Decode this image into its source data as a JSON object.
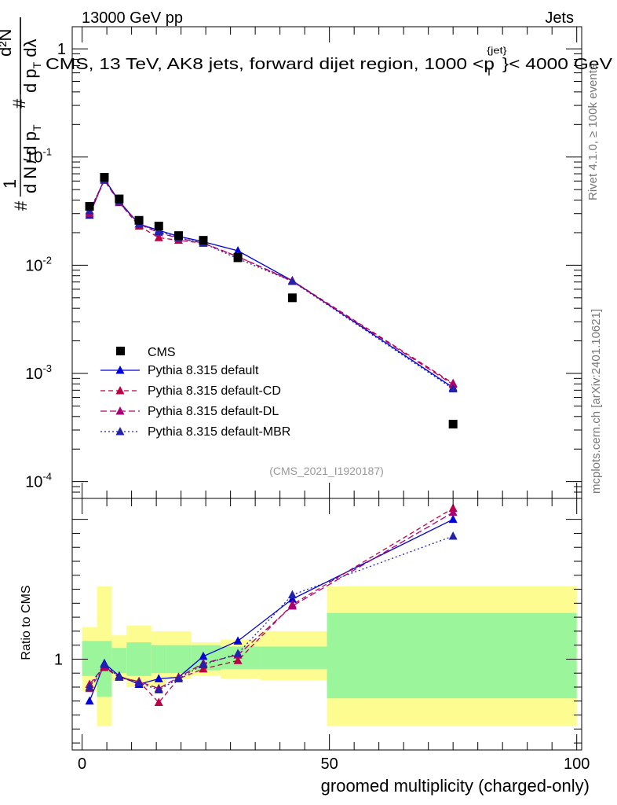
{
  "header": {
    "left": "13000 GeV pp",
    "right": "Jets"
  },
  "side": {
    "rivet": "Rivet 4.1.0, ≥ 100k events",
    "mcplots": "mcplots.cern.ch [arXiv:2401.10621]"
  },
  "chart_data": {
    "type": "scatter",
    "title": "CMS, 13 TeV, AK8 jets, forward dijet region, 1000 <p_T^{jet}< 4000 GeV",
    "title_parts": {
      "pre": "CMS, 13 TeV, AK8 jets, forward dijet region, 1000 <p",
      "sup": "{jet}",
      "sub": "T",
      "post": "}< 4000 GeV"
    },
    "ylabel": "1/(dN/dp_T) d²N/(dp_T dλ)",
    "ylabel_parts": {
      "hash": "#",
      "one": "1",
      "dn": "d N",
      "slash": "/",
      "dp": "d p",
      "t": "T",
      "d2n": "d²N",
      "dpdl": "d p",
      "dl": " dλ"
    },
    "xlabel": "groomed multiplicity (charged-only)",
    "ratio_ylabel": "Ratio to CMS",
    "watermark": "(CMS_2021_I1920187)",
    "xlim": [
      -2,
      101
    ],
    "ylim": [
      7e-05,
      1.6
    ],
    "yscale": "log",
    "ratio_ylim": [
      0.35,
      2.15
    ],
    "x_ticks": [
      0,
      50,
      100
    ],
    "x_tick_labels": [
      "0",
      "50",
      "100"
    ],
    "y_ticks": [
      0.0001,
      0.001,
      0.01,
      0.1,
      1
    ],
    "y_tick_labels": [
      {
        "base": "10",
        "exp": "-4"
      },
      {
        "base": "10",
        "exp": "-3"
      },
      {
        "base": "10",
        "exp": "-2"
      },
      {
        "base": "10",
        "exp": "-1"
      },
      {
        "base": "",
        "exp": "",
        "plain": "1"
      }
    ],
    "ratio_ticks": [
      1
    ],
    "ratio_tick_labels": [
      "1"
    ],
    "legend_position": "bottom-left",
    "data": {
      "name": "CMS",
      "x": [
        1.5,
        4.5,
        7.5,
        11.5,
        15.5,
        19.5,
        24.5,
        31.5,
        42.5,
        75
      ],
      "y": [
        0.035,
        0.065,
        0.041,
        0.026,
        0.023,
        0.0188,
        0.017,
        0.0118,
        0.005,
        0.00034
      ]
    },
    "bands": {
      "bins": [
        [
          0,
          3
        ],
        [
          3,
          6
        ],
        [
          6,
          9
        ],
        [
          9,
          14
        ],
        [
          14,
          17
        ],
        [
          17,
          22
        ],
        [
          22,
          28
        ],
        [
          28,
          36
        ],
        [
          36,
          49.5
        ],
        [
          49.5,
          100
        ]
      ],
      "stat_lo": [
        0.88,
        0.73,
        0.9,
        0.88,
        0.9,
        0.9,
        0.92,
        0.93,
        0.93,
        0.72
      ],
      "stat_hi": [
        1.13,
        1.13,
        1.08,
        1.12,
        1.1,
        1.1,
        1.1,
        1.09,
        1.09,
        1.33
      ],
      "tot_lo": [
        0.77,
        0.52,
        0.85,
        0.8,
        0.8,
        0.86,
        0.88,
        0.86,
        0.85,
        0.52
      ],
      "tot_hi": [
        1.23,
        1.52,
        1.17,
        1.24,
        1.2,
        1.2,
        1.12,
        1.14,
        1.2,
        1.52
      ],
      "stat_color": "#9bf59b",
      "tot_color": "#fcfc90"
    },
    "series": [
      {
        "name": "Pythia 8.315 default",
        "color": "#0000dd",
        "dash": "solid",
        "x": [
          1.5,
          4.5,
          7.5,
          11.5,
          15.5,
          19.5,
          24.5,
          31.5,
          42.5,
          75
        ],
        "y": [
          0.029,
          0.063,
          0.039,
          0.024,
          0.021,
          0.0185,
          0.0165,
          0.0136,
          0.0072,
          0.00074
        ],
        "ratio": [
          0.7,
          0.97,
          0.88,
          0.82,
          0.86,
          0.87,
          1.02,
          1.13,
          1.43,
          2.0
        ]
      },
      {
        "name": "Pythia 8.315 default-CD",
        "color": "#bb0044",
        "dash": "6,4",
        "x": [
          1.5,
          4.5,
          7.5,
          11.5,
          15.5,
          19.5,
          24.5,
          31.5,
          42.5,
          75
        ],
        "y": [
          0.03,
          0.061,
          0.038,
          0.023,
          0.018,
          0.017,
          0.016,
          0.012,
          0.0072,
          0.00081
        ],
        "ratio": [
          0.79,
          0.94,
          0.87,
          0.84,
          0.69,
          0.86,
          0.93,
          0.99,
          1.39,
          2.08
        ]
      },
      {
        "name": "Pythia 8.315 default-DL",
        "color": "#aa0077",
        "dash": "8,4",
        "x": [
          1.5,
          4.5,
          7.5,
          11.5,
          15.5,
          19.5,
          24.5,
          31.5,
          42.5,
          75
        ],
        "y": [
          0.031,
          0.062,
          0.038,
          0.024,
          0.02,
          0.0178,
          0.016,
          0.012,
          0.0071,
          0.00079
        ],
        "ratio": [
          0.82,
          0.95,
          0.87,
          0.84,
          0.79,
          0.87,
          0.97,
          1.03,
          1.38,
          2.05
        ]
      },
      {
        "name": "Pythia 8.315 default-MBR",
        "color": "#2222aa",
        "dash": "2,3",
        "x": [
          1.5,
          4.5,
          7.5,
          11.5,
          15.5,
          19.5,
          24.5,
          31.5,
          42.5,
          75
        ],
        "y": [
          0.032,
          0.061,
          0.039,
          0.024,
          0.0205,
          0.018,
          0.016,
          0.0115,
          0.0071,
          0.00072
        ],
        "ratio": [
          0.8,
          0.96,
          0.87,
          0.83,
          0.78,
          0.86,
          0.96,
          1.04,
          1.46,
          1.88
        ]
      }
    ]
  }
}
